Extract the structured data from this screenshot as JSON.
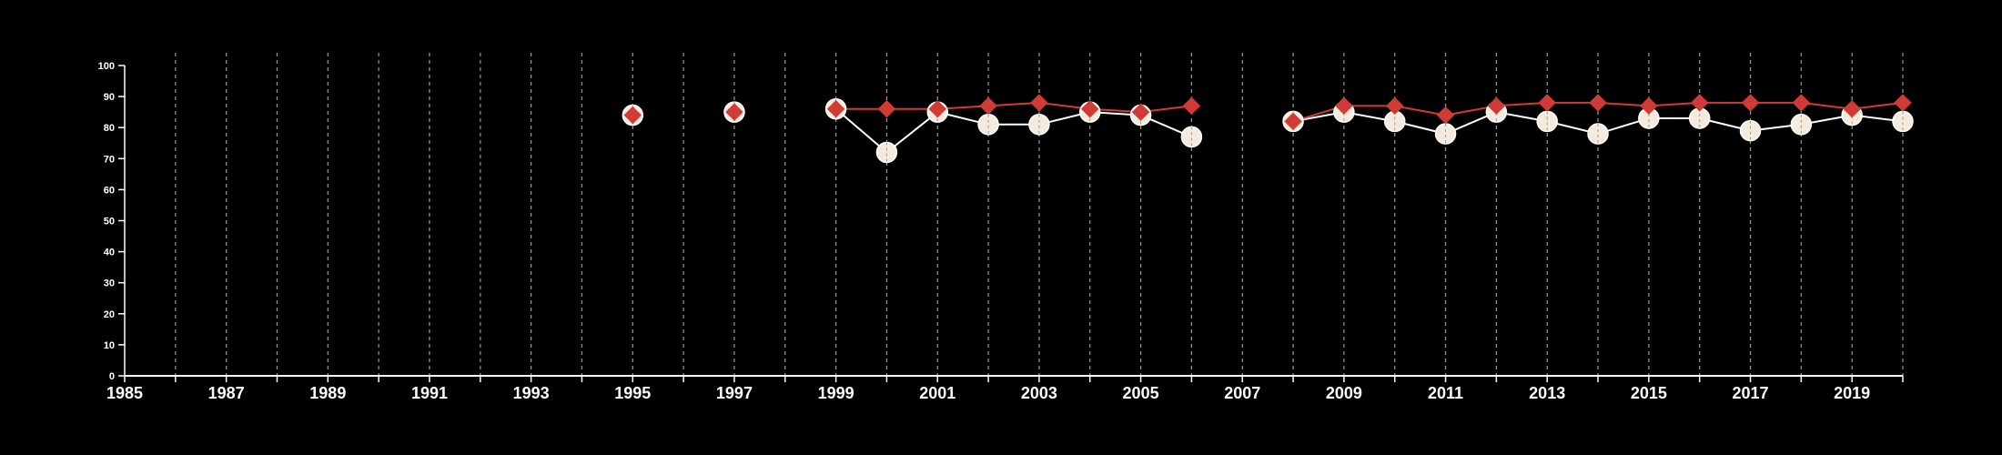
{
  "chart_data": {
    "type": "line",
    "title": "",
    "xlabel": "",
    "ylabel": "",
    "xlim": [
      1985,
      2020
    ],
    "ylim": [
      0,
      100
    ],
    "y_ticks": [
      0,
      10,
      20,
      30,
      40,
      50,
      60,
      70,
      80,
      90,
      100
    ],
    "x_tick_labels": [
      1985,
      1987,
      1989,
      1991,
      1993,
      1995,
      1997,
      1999,
      2001,
      2003,
      2005,
      2007,
      2009,
      2011,
      2013,
      2015,
      2017,
      2019
    ],
    "x_gridlines": [
      1986,
      1987,
      1988,
      1989,
      1990,
      1991,
      1992,
      1993,
      1994,
      1995,
      1996,
      1997,
      1998,
      1999,
      2000,
      2001,
      2002,
      2003,
      2004,
      2005,
      2006,
      2007,
      2008,
      2009,
      2010,
      2011,
      2012,
      2013,
      2014,
      2015,
      2016,
      2017,
      2018,
      2019,
      2020
    ],
    "grid": "vertical-dashed",
    "series": [
      {
        "marker": "circle",
        "color": "#f5ebdc",
        "points": [
          {
            "x": 1995,
            "y": 84
          },
          {
            "x": 1997,
            "y": 85
          },
          {
            "x": 1999,
            "y": 86
          },
          {
            "x": 2000,
            "y": 72
          },
          {
            "x": 2001,
            "y": 85
          },
          {
            "x": 2002,
            "y": 81
          },
          {
            "x": 2003,
            "y": 81
          },
          {
            "x": 2004,
            "y": 85
          },
          {
            "x": 2005,
            "y": 84
          },
          {
            "x": 2006,
            "y": 77
          },
          {
            "x": 2008,
            "y": 82
          },
          {
            "x": 2009,
            "y": 85
          },
          {
            "x": 2010,
            "y": 82
          },
          {
            "x": 2011,
            "y": 78
          },
          {
            "x": 2012,
            "y": 85
          },
          {
            "x": 2013,
            "y": 82
          },
          {
            "x": 2014,
            "y": 78
          },
          {
            "x": 2015,
            "y": 83
          },
          {
            "x": 2016,
            "y": 83
          },
          {
            "x": 2017,
            "y": 79
          },
          {
            "x": 2018,
            "y": 81
          },
          {
            "x": 2019,
            "y": 84
          },
          {
            "x": 2020,
            "y": 82
          }
        ]
      },
      {
        "marker": "diamond",
        "color": "#d03b35",
        "points": [
          {
            "x": 1995,
            "y": 84
          },
          {
            "x": 1997,
            "y": 85
          },
          {
            "x": 1999,
            "y": 86
          },
          {
            "x": 2000,
            "y": 86
          },
          {
            "x": 2001,
            "y": 86
          },
          {
            "x": 2002,
            "y": 87
          },
          {
            "x": 2003,
            "y": 88
          },
          {
            "x": 2004,
            "y": 86
          },
          {
            "x": 2005,
            "y": 85
          },
          {
            "x": 2006,
            "y": 87
          },
          {
            "x": 2008,
            "y": 82
          },
          {
            "x": 2009,
            "y": 87
          },
          {
            "x": 2010,
            "y": 87
          },
          {
            "x": 2011,
            "y": 84
          },
          {
            "x": 2012,
            "y": 87
          },
          {
            "x": 2013,
            "y": 88
          },
          {
            "x": 2014,
            "y": 88
          },
          {
            "x": 2015,
            "y": 87
          },
          {
            "x": 2016,
            "y": 88
          },
          {
            "x": 2017,
            "y": 88
          },
          {
            "x": 2018,
            "y": 88
          },
          {
            "x": 2019,
            "y": 86
          },
          {
            "x": 2020,
            "y": 88
          }
        ]
      }
    ]
  }
}
